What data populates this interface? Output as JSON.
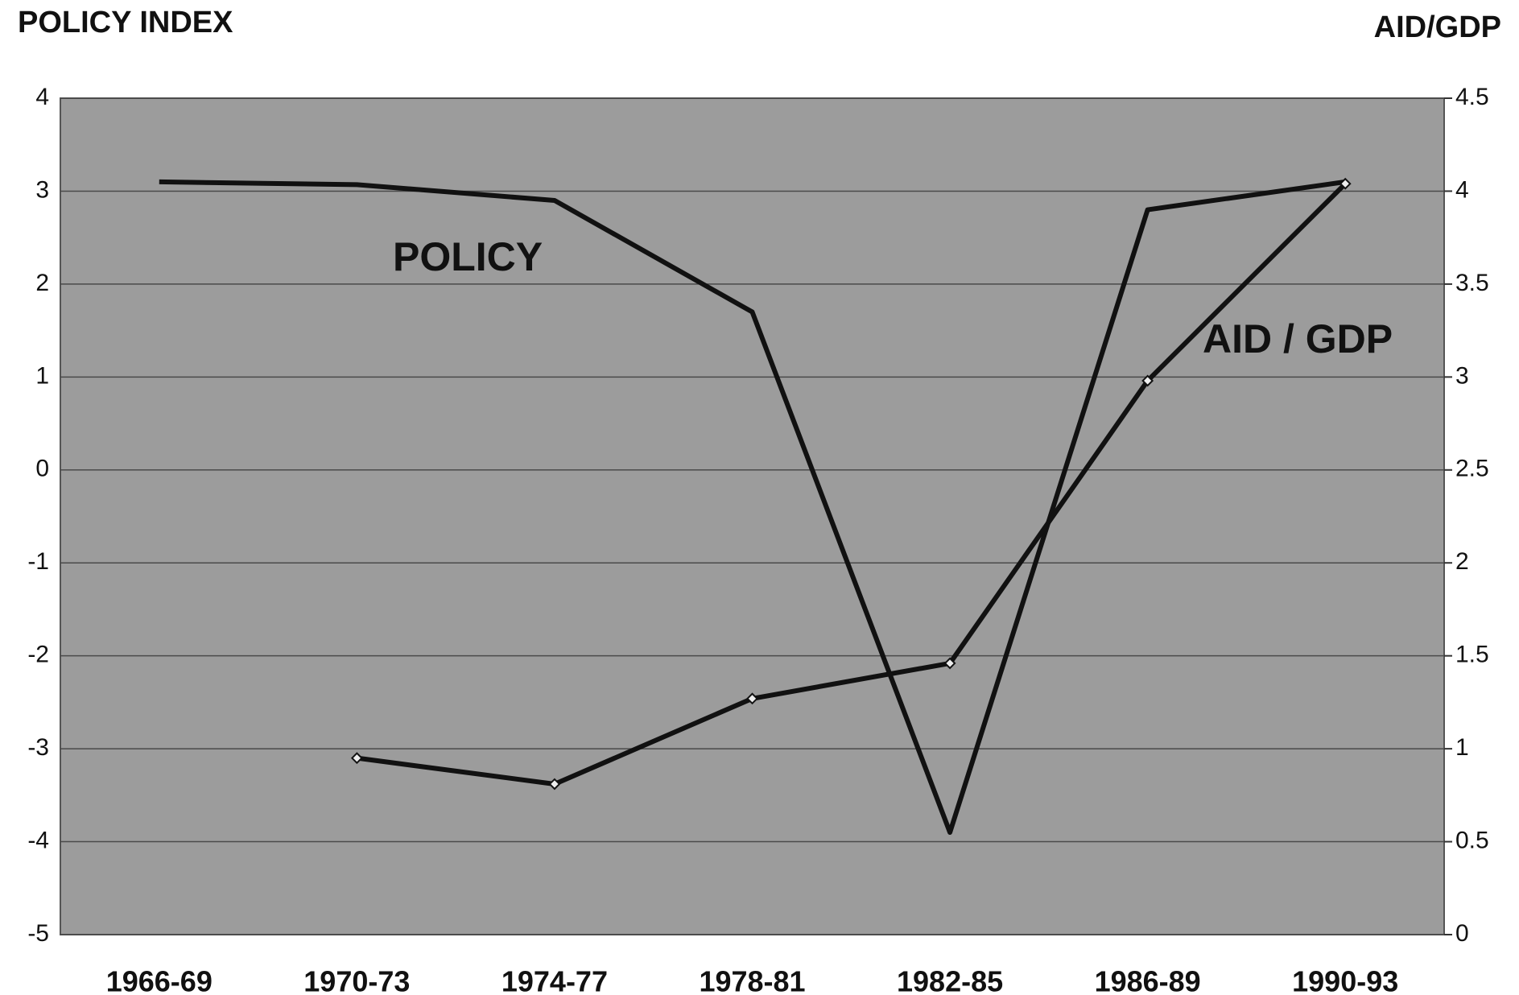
{
  "chart_data": {
    "type": "line",
    "y_label": "POLICY INDEX",
    "y2_label": "AID/GDP",
    "categories": [
      "1966-69",
      "1970-73",
      "1974-77",
      "1978-81",
      "1982-85",
      "1986-89",
      "1990-93"
    ],
    "series": [
      {
        "name": "POLICY",
        "color": "#111111",
        "values": [
          3.1,
          3.07,
          2.9,
          1.7,
          -3.9,
          2.8,
          3.1
        ]
      },
      {
        "name": "AID / GDP",
        "color": "#111111",
        "axis": "y2",
        "values": [
          null,
          0.95,
          0.81,
          1.27,
          1.46,
          2.98,
          4.04
        ]
      }
    ],
    "ylim": [
      -5,
      4
    ],
    "yticks": [
      -5,
      -4,
      -3,
      -2,
      -1,
      0,
      1,
      2,
      3,
      4
    ],
    "y2lim": [
      0,
      4.5
    ],
    "y2ticks": [
      0,
      0.5,
      1,
      1.5,
      2,
      2.5,
      3,
      3.5,
      4,
      4.5
    ],
    "grid": true
  }
}
